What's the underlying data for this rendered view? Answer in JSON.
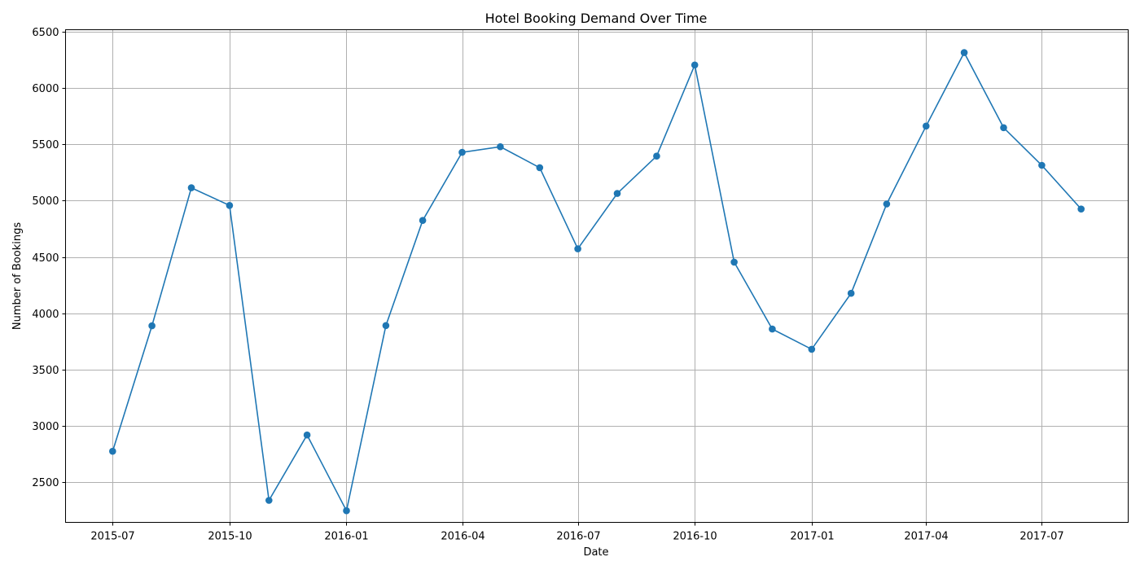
{
  "chart_data": {
    "type": "line",
    "title": "Hotel Booking Demand Over Time",
    "xlabel": "Date",
    "ylabel": "Number of Bookings",
    "x": [
      "2015-07-01",
      "2015-08-01",
      "2015-09-01",
      "2015-10-01",
      "2015-11-01",
      "2015-12-01",
      "2016-01-01",
      "2016-02-01",
      "2016-03-01",
      "2016-04-01",
      "2016-05-01",
      "2016-06-01",
      "2016-07-01",
      "2016-08-01",
      "2016-09-01",
      "2016-10-01",
      "2016-11-01",
      "2016-12-01",
      "2017-01-01",
      "2017-02-01",
      "2017-03-01",
      "2017-04-01",
      "2017-05-01",
      "2017-06-01",
      "2017-07-01",
      "2017-08-01"
    ],
    "series": [
      {
        "values": [
          2776,
          3889,
          5114,
          4957,
          2340,
          2920,
          2248,
          3891,
          4824,
          5428,
          5478,
          5292,
          4572,
          5063,
          5395,
          6203,
          4454,
          3860,
          3681,
          4177,
          4970,
          5661,
          6313,
          5647,
          5313,
          4925
        ],
        "color": "#1f77b4"
      }
    ],
    "xticks": [
      "2015-07",
      "2015-10",
      "2016-01",
      "2016-04",
      "2016-07",
      "2016-10",
      "2017-01",
      "2017-04",
      "2017-07"
    ],
    "yticks": [
      2500,
      3000,
      3500,
      4000,
      4500,
      5000,
      5500,
      6000,
      6500
    ],
    "ylim": [
      2145,
      6516
    ],
    "xlim": [
      "2015-05-25",
      "2017-09-07"
    ],
    "grid": true
  }
}
